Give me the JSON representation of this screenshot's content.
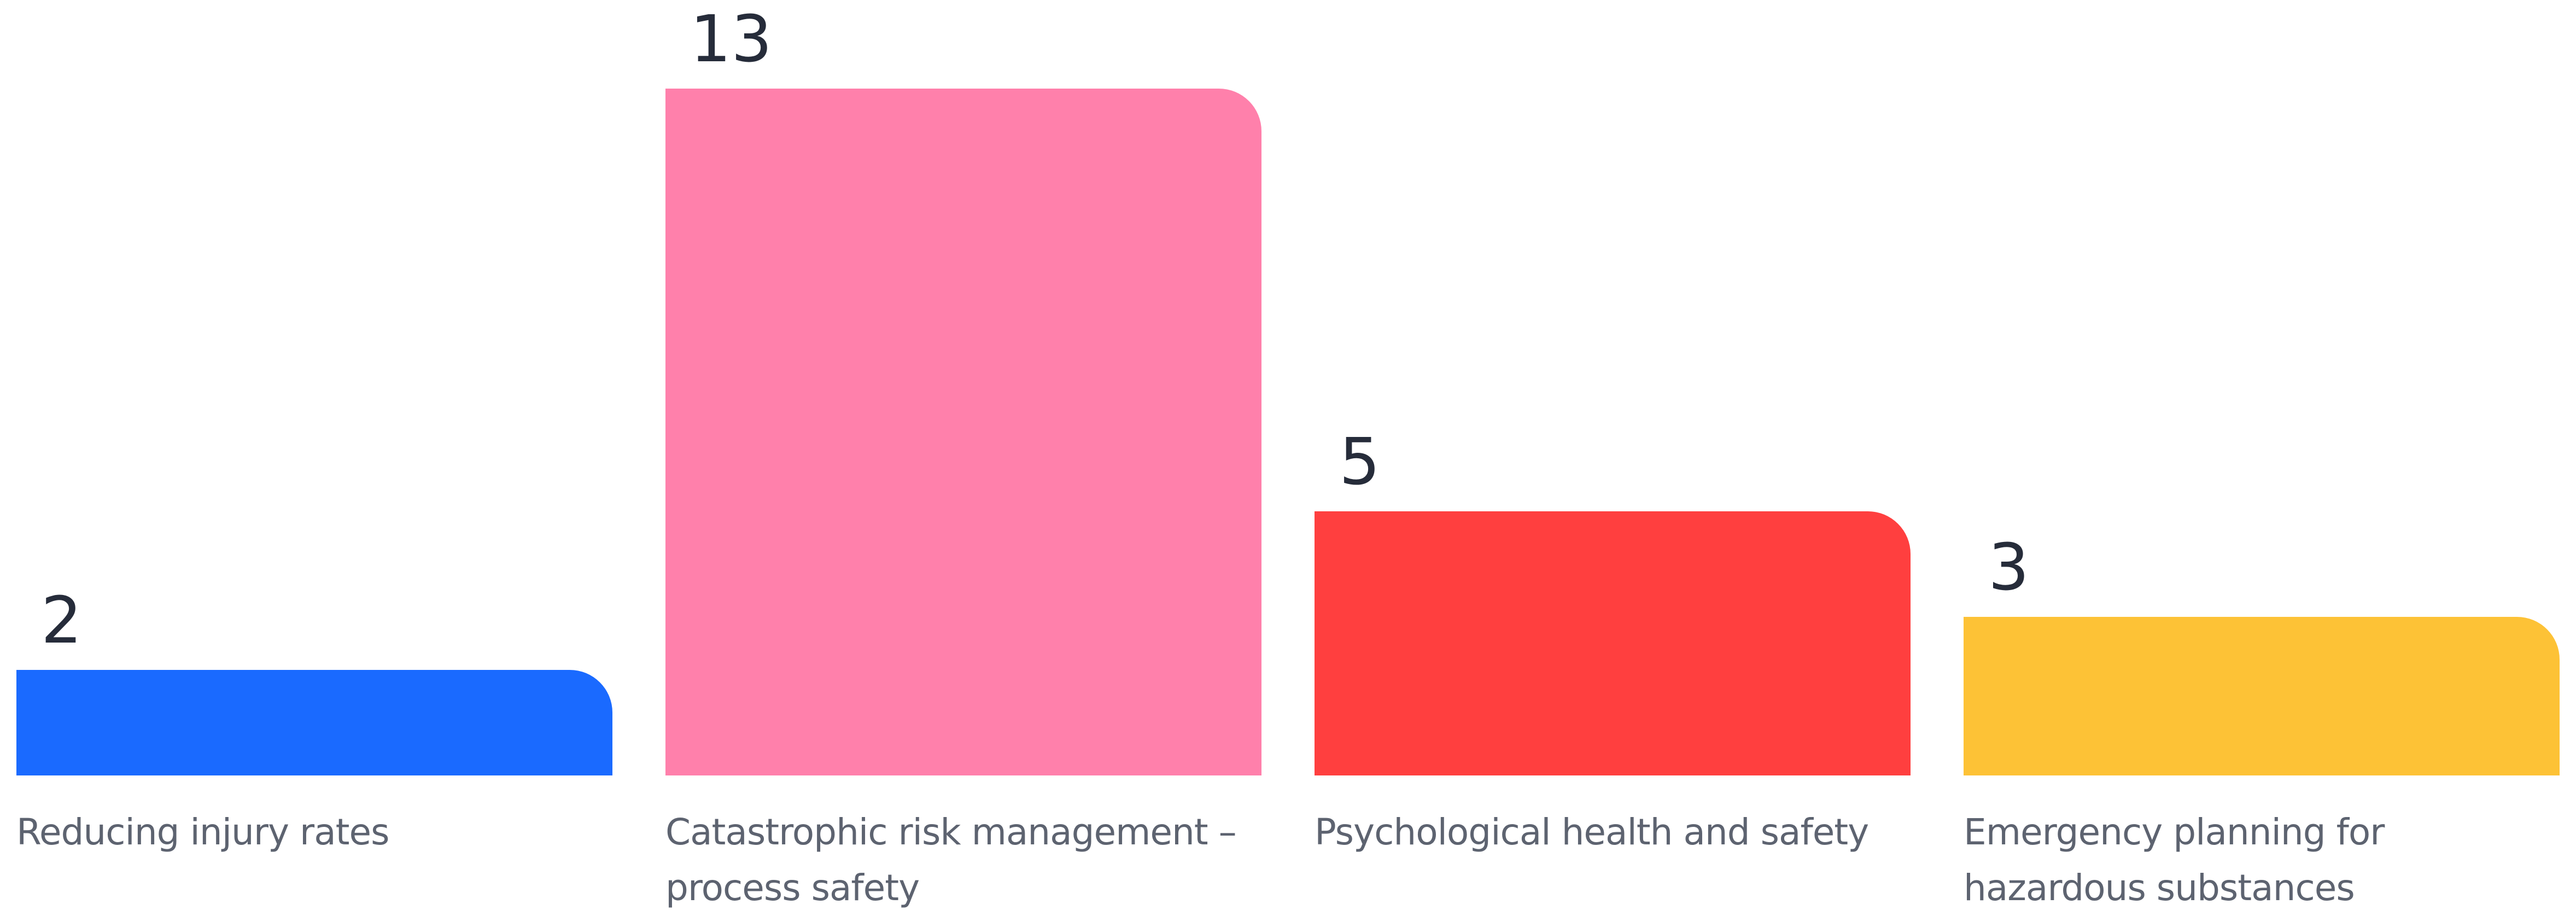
{
  "chart_data": {
    "type": "bar",
    "categories": [
      "Reducing injury rates",
      "Catastrophic risk management – process safety",
      "Psychological health and safety",
      "Emergency planning for hazardous substances"
    ],
    "values": [
      2,
      13,
      5,
      3
    ],
    "colors": [
      "#1a6aff",
      "#ff80ab",
      "#ff3f3f",
      "#fdc236"
    ]
  }
}
